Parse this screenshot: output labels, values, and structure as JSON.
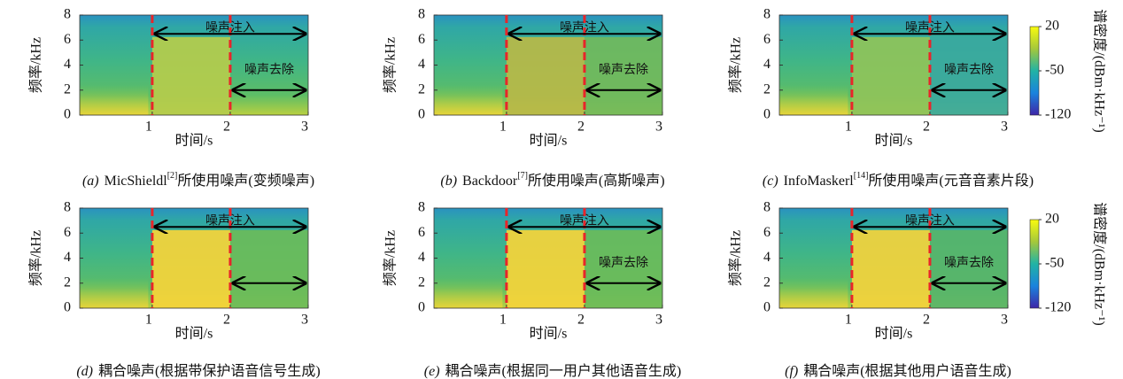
{
  "chart_data": [
    {
      "type": "spectrogram",
      "caption_label": "(a)",
      "caption": "MicShieldl",
      "caption_ref": "[2]",
      "caption_rest": "所使用噪声(变频噪声)",
      "xlabel": "时间/s",
      "ylabel": "频率/kHz",
      "xlim": [
        0.07,
        3
      ],
      "ylim": [
        0,
        8
      ],
      "xticks": [
        1,
        2,
        3
      ],
      "yticks": [
        0,
        2,
        4,
        6,
        8
      ],
      "markers": [
        1,
        2
      ],
      "marker_color": "#e8252a",
      "arrows": [
        {
          "label": "噪声注入",
          "x": [
            1,
            3
          ],
          "y": 6.5
        },
        {
          "label": "噪声去除",
          "x": [
            2,
            3
          ],
          "y": 2
        }
      ]
    },
    {
      "type": "spectrogram",
      "caption_label": "(b)",
      "caption": "Backdoor",
      "caption_ref": "[7]",
      "caption_rest": "所使用噪声(高斯噪声)",
      "xlabel": "时间/s",
      "ylabel": "频率/kHz",
      "xlim": [
        0.07,
        3
      ],
      "ylim": [
        0,
        8
      ],
      "xticks": [
        1,
        2,
        3
      ],
      "yticks": [
        0,
        2,
        4,
        6,
        8
      ],
      "markers": [
        1,
        2
      ],
      "marker_color": "#e8252a",
      "arrows": [
        {
          "label": "噪声注入",
          "x": [
            1,
            3
          ],
          "y": 6.5
        },
        {
          "label": "噪声去除",
          "x": [
            2,
            3
          ],
          "y": 2
        }
      ]
    },
    {
      "type": "spectrogram",
      "caption_label": "(c)",
      "caption": "InfoMaskerl",
      "caption_ref": "[14]",
      "caption_rest": "所使用噪声(元音音素片段)",
      "xlabel": "时间/s",
      "ylabel": "频率/kHz",
      "xlim": [
        0.07,
        3
      ],
      "ylim": [
        0,
        8
      ],
      "xticks": [
        1,
        2,
        3
      ],
      "yticks": [
        0,
        2,
        4,
        6,
        8
      ],
      "markers": [
        1,
        2
      ],
      "marker_color": "#e8252a",
      "arrows": [
        {
          "label": "噪声注入",
          "x": [
            1,
            3
          ],
          "y": 6.5
        },
        {
          "label": "噪声去除",
          "x": [
            2,
            3
          ],
          "y": 2
        }
      ],
      "colorbar": {
        "label": "谱密度/(dBm·kHz⁻¹)",
        "lim": [
          -120,
          20
        ],
        "ticks": [
          20,
          -50,
          -120
        ]
      }
    },
    {
      "type": "spectrogram",
      "caption_label": "(d)",
      "caption": "耦合噪声(根据带保护语音信号生成)",
      "xlabel": "时间/s",
      "ylabel": "频率/kHz",
      "xlim": [
        0.07,
        3
      ],
      "ylim": [
        0,
        8
      ],
      "xticks": [
        1,
        2,
        3
      ],
      "yticks": [
        0,
        2,
        4,
        6,
        8
      ],
      "markers": [
        1,
        2
      ],
      "marker_color": "#e8252a",
      "arrows": [
        {
          "label": "噪声注入",
          "x": [
            1,
            3
          ],
          "y": 6.5
        },
        {
          "x": [
            2,
            3
          ],
          "y": 2
        }
      ]
    },
    {
      "type": "spectrogram",
      "caption_label": "(e)",
      "caption": "耦合噪声(根据同一用户其他语音生成)",
      "xlabel": "时间/s",
      "ylabel": "频率/kHz",
      "xlim": [
        0.07,
        3
      ],
      "ylim": [
        0,
        8
      ],
      "xticks": [
        1,
        2,
        3
      ],
      "yticks": [
        0,
        2,
        4,
        6,
        8
      ],
      "markers": [
        1,
        2
      ],
      "marker_color": "#e8252a",
      "arrows": [
        {
          "label": "噪声注入",
          "x": [
            1,
            3
          ],
          "y": 6.5
        },
        {
          "label": "噪声去除",
          "x": [
            2,
            3
          ],
          "y": 2
        }
      ]
    },
    {
      "type": "spectrogram",
      "caption_label": "(f)",
      "caption": "耦合噪声(根据其他用户语音生成)",
      "xlabel": "时间/s",
      "ylabel": "频率/kHz",
      "xlim": [
        0.07,
        3
      ],
      "ylim": [
        0,
        8
      ],
      "xticks": [
        1,
        2,
        3
      ],
      "yticks": [
        0,
        2,
        4,
        6,
        8
      ],
      "markers": [
        1,
        2
      ],
      "marker_color": "#e8252a",
      "arrows": [
        {
          "label": "噪声注入",
          "x": [
            1,
            3
          ],
          "y": 6.5
        },
        {
          "label": "噪声去除",
          "x": [
            2,
            3
          ],
          "y": 2
        }
      ],
      "colorbar": {
        "label": "谱密度/(dBm·kHz⁻¹)",
        "lim": [
          -120,
          20
        ],
        "ticks": [
          20,
          -50,
          -120
        ]
      }
    }
  ]
}
